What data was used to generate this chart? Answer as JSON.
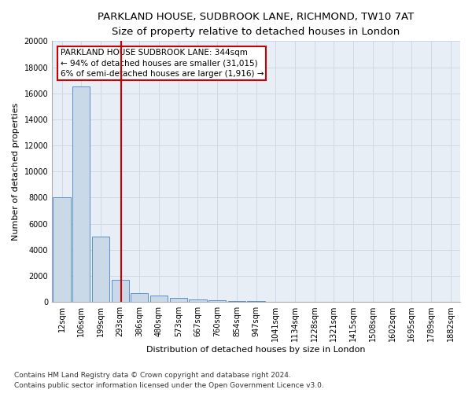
{
  "title1": "PARKLAND HOUSE, SUDBROOK LANE, RICHMOND, TW10 7AT",
  "title2": "Size of property relative to detached houses in London",
  "xlabel": "Distribution of detached houses by size in London",
  "ylabel": "Number of detached properties",
  "footnote1": "Contains HM Land Registry data © Crown copyright and database right 2024.",
  "footnote2": "Contains public sector information licensed under the Open Government Licence v3.0.",
  "bin_labels": [
    "12sqm",
    "106sqm",
    "199sqm",
    "293sqm",
    "386sqm",
    "480sqm",
    "573sqm",
    "667sqm",
    "760sqm",
    "854sqm",
    "947sqm",
    "1041sqm",
    "1134sqm",
    "1228sqm",
    "1321sqm",
    "1415sqm",
    "1508sqm",
    "1602sqm",
    "1695sqm",
    "1789sqm",
    "1882sqm"
  ],
  "bar_values": [
    8050,
    16500,
    5000,
    1700,
    680,
    470,
    290,
    200,
    145,
    80,
    40,
    0,
    0,
    0,
    0,
    0,
    0,
    0,
    0,
    0,
    0
  ],
  "bar_color": "#c9d9e8",
  "bar_edge_color": "#5b8fc9",
  "vline_color": "#cc0000",
  "vline_pos": 3.05,
  "annotation_text": "PARKLAND HOUSE SUDBROOK LANE: 344sqm\n← 94% of detached houses are smaller (31,015)\n6% of semi-detached houses are larger (1,916) →",
  "annotation_box_color": "#ffffff",
  "annotation_box_edge_color": "#cc0000",
  "ylim": [
    0,
    20000
  ],
  "yticks": [
    0,
    2000,
    4000,
    6000,
    8000,
    10000,
    12000,
    14000,
    16000,
    18000,
    20000
  ],
  "grid_color": "#d0d8e8",
  "plot_bg_color": "#e8eef5",
  "title1_fontsize": 9.5,
  "title2_fontsize": 8.5,
  "xlabel_fontsize": 8,
  "ylabel_fontsize": 8,
  "tick_fontsize": 7,
  "annotation_fontsize": 7.5,
  "footnote_fontsize": 6.5
}
